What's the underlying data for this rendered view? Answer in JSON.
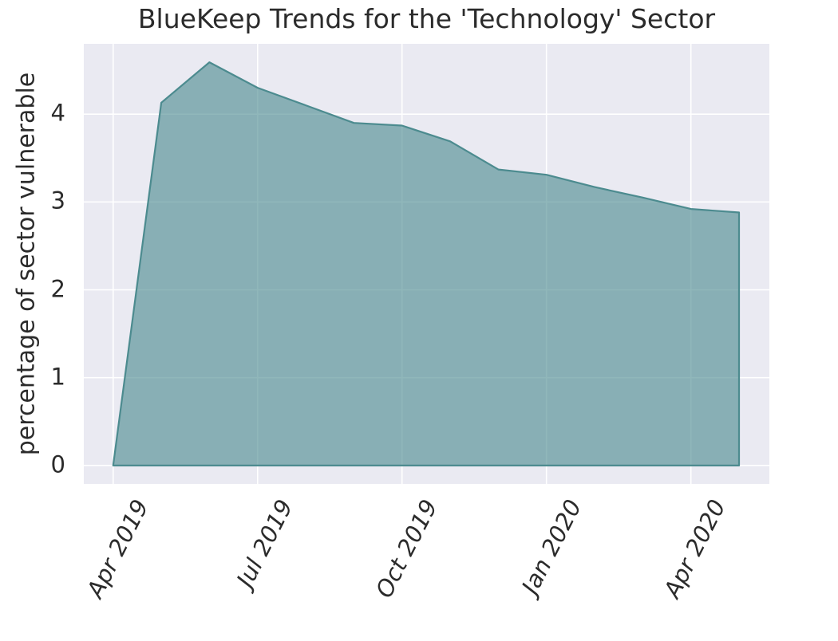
{
  "chart_data": {
    "type": "area",
    "title": "BlueKeep Trends for the 'Technology' Sector",
    "xlabel": "",
    "ylabel": "percentage of sector vulnerable",
    "x": [
      "Apr 2019",
      "May 2019",
      "Jun 2019",
      "Jul 2019",
      "Aug 2019",
      "Sep 2019",
      "Oct 2019",
      "Nov 2019",
      "Dec 2019",
      "Jan 2020",
      "Feb 2020",
      "Mar 2020",
      "Apr 2020",
      "May 2020"
    ],
    "values": [
      0.0,
      4.13,
      4.59,
      4.3,
      4.1,
      3.9,
      3.87,
      3.69,
      3.37,
      3.31,
      3.17,
      3.05,
      2.92,
      2.88
    ],
    "series": [
      {
        "name": "percentage of sector vulnerable",
        "values": [
          0.0,
          4.13,
          4.59,
          4.3,
          4.1,
          3.9,
          3.87,
          3.69,
          3.37,
          3.31,
          3.17,
          3.05,
          2.92,
          2.88
        ]
      }
    ],
    "xticks": [
      {
        "label": "Apr 2019",
        "month_index": 0
      },
      {
        "label": "Jul 2019",
        "month_index": 3
      },
      {
        "label": "Oct 2019",
        "month_index": 6
      },
      {
        "label": "Jan 2020",
        "month_index": 9
      },
      {
        "label": "Apr 2020",
        "month_index": 12
      }
    ],
    "yticks": [
      0,
      1,
      2,
      3,
      4
    ],
    "ylim": [
      -0.21,
      4.8
    ],
    "xlim_months": [
      -0.61,
      13.63
    ],
    "grid": true,
    "legend": false,
    "colors": {
      "area_fill": "#4c8b8f",
      "area_fill_alpha": 0.62,
      "area_line": "#4c8b8f",
      "plot_background": "#eaeaf2",
      "gridline": "#ffffff",
      "text": "#2b2b2b"
    }
  }
}
